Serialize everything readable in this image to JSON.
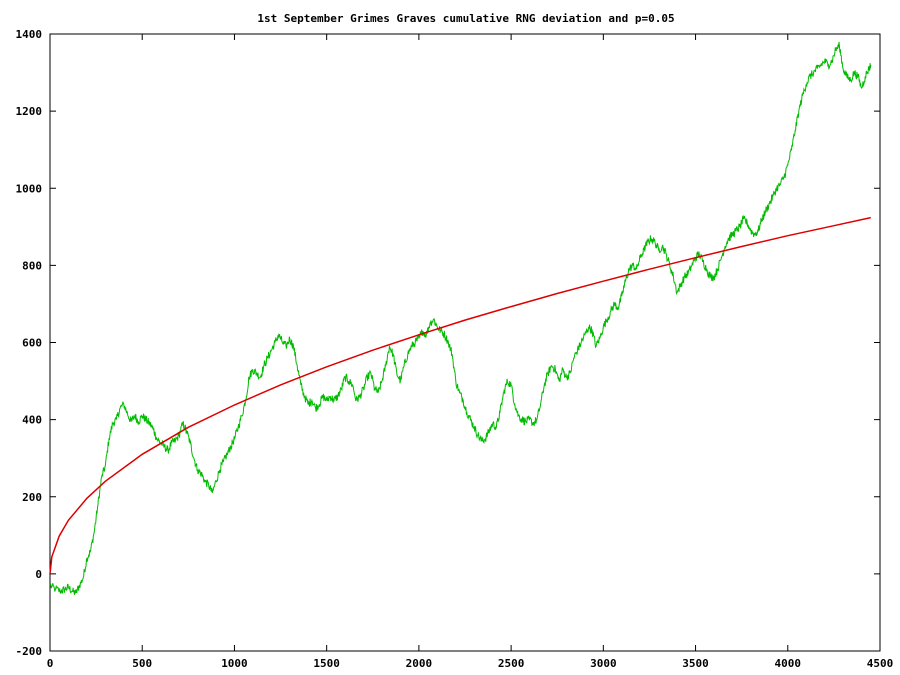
{
  "chart_data": {
    "type": "line",
    "title": "1st September Grimes Graves cumulative RNG deviation and p=0.05",
    "xlabel": "",
    "ylabel": "",
    "xlim": [
      0,
      4500
    ],
    "ylim": [
      -200,
      1400
    ],
    "x_ticks": [
      0,
      500,
      1000,
      1500,
      2000,
      2500,
      3000,
      3500,
      4000,
      4500
    ],
    "y_ticks": [
      -200,
      0,
      200,
      400,
      600,
      800,
      1000,
      1200,
      1400
    ],
    "grid": false,
    "legend": "none",
    "series": [
      {
        "color": "#00bb00",
        "points": [
          [
            0,
            -30
          ],
          [
            30,
            -40
          ],
          [
            60,
            -45
          ],
          [
            80,
            -40
          ],
          [
            100,
            -35
          ],
          [
            120,
            -45
          ],
          [
            140,
            -50
          ],
          [
            160,
            -30
          ],
          [
            180,
            -10
          ],
          [
            200,
            40
          ],
          [
            220,
            60
          ],
          [
            240,
            110
          ],
          [
            260,
            180
          ],
          [
            280,
            250
          ],
          [
            300,
            280
          ],
          [
            320,
            350
          ],
          [
            340,
            390
          ],
          [
            360,
            400
          ],
          [
            380,
            430
          ],
          [
            400,
            440
          ],
          [
            420,
            415
          ],
          [
            440,
            395
          ],
          [
            460,
            410
          ],
          [
            480,
            395
          ],
          [
            500,
            410
          ],
          [
            520,
            400
          ],
          [
            540,
            390
          ],
          [
            560,
            375
          ],
          [
            580,
            350
          ],
          [
            600,
            340
          ],
          [
            620,
            330
          ],
          [
            640,
            320
          ],
          [
            660,
            340
          ],
          [
            680,
            345
          ],
          [
            700,
            360
          ],
          [
            720,
            390
          ],
          [
            740,
            370
          ],
          [
            760,
            340
          ],
          [
            780,
            300
          ],
          [
            800,
            270
          ],
          [
            820,
            260
          ],
          [
            840,
            240
          ],
          [
            860,
            230
          ],
          [
            880,
            210
          ],
          [
            900,
            240
          ],
          [
            920,
            270
          ],
          [
            940,
            290
          ],
          [
            960,
            310
          ],
          [
            980,
            330
          ],
          [
            1000,
            350
          ],
          [
            1020,
            380
          ],
          [
            1040,
            410
          ],
          [
            1060,
            450
          ],
          [
            1080,
            510
          ],
          [
            1100,
            530
          ],
          [
            1120,
            520
          ],
          [
            1140,
            510
          ],
          [
            1160,
            540
          ],
          [
            1180,
            560
          ],
          [
            1200,
            580
          ],
          [
            1220,
            600
          ],
          [
            1240,
            620
          ],
          [
            1260,
            600
          ],
          [
            1280,
            590
          ],
          [
            1300,
            610
          ],
          [
            1320,
            590
          ],
          [
            1340,
            540
          ],
          [
            1360,
            490
          ],
          [
            1380,
            460
          ],
          [
            1400,
            440
          ],
          [
            1420,
            450
          ],
          [
            1440,
            430
          ],
          [
            1460,
            440
          ],
          [
            1480,
            460
          ],
          [
            1500,
            450
          ],
          [
            1520,
            460
          ],
          [
            1540,
            450
          ],
          [
            1560,
            460
          ],
          [
            1580,
            480
          ],
          [
            1600,
            510
          ],
          [
            1620,
            500
          ],
          [
            1640,
            490
          ],
          [
            1660,
            450
          ],
          [
            1680,
            460
          ],
          [
            1700,
            480
          ],
          [
            1720,
            510
          ],
          [
            1740,
            520
          ],
          [
            1760,
            480
          ],
          [
            1780,
            470
          ],
          [
            1800,
            500
          ],
          [
            1820,
            540
          ],
          [
            1840,
            590
          ],
          [
            1860,
            570
          ],
          [
            1880,
            520
          ],
          [
            1900,
            500
          ],
          [
            1920,
            540
          ],
          [
            1940,
            570
          ],
          [
            1960,
            590
          ],
          [
            1980,
            600
          ],
          [
            2000,
            610
          ],
          [
            2020,
            630
          ],
          [
            2040,
            620
          ],
          [
            2060,
            650
          ],
          [
            2080,
            660
          ],
          [
            2100,
            640
          ],
          [
            2120,
            630
          ],
          [
            2140,
            620
          ],
          [
            2160,
            600
          ],
          [
            2180,
            570
          ],
          [
            2200,
            500
          ],
          [
            2220,
            470
          ],
          [
            2240,
            450
          ],
          [
            2260,
            420
          ],
          [
            2280,
            400
          ],
          [
            2300,
            380
          ],
          [
            2320,
            360
          ],
          [
            2340,
            345
          ],
          [
            2360,
            350
          ],
          [
            2380,
            370
          ],
          [
            2400,
            390
          ],
          [
            2420,
            380
          ],
          [
            2440,
            420
          ],
          [
            2460,
            470
          ],
          [
            2480,
            500
          ],
          [
            2500,
            490
          ],
          [
            2520,
            440
          ],
          [
            2540,
            410
          ],
          [
            2560,
            400
          ],
          [
            2580,
            395
          ],
          [
            2600,
            400
          ],
          [
            2620,
            390
          ],
          [
            2640,
            400
          ],
          [
            2660,
            440
          ],
          [
            2680,
            490
          ],
          [
            2700,
            520
          ],
          [
            2720,
            540
          ],
          [
            2740,
            530
          ],
          [
            2760,
            500
          ],
          [
            2780,
            530
          ],
          [
            2800,
            510
          ],
          [
            2820,
            520
          ],
          [
            2840,
            560
          ],
          [
            2860,
            580
          ],
          [
            2880,
            600
          ],
          [
            2900,
            620
          ],
          [
            2920,
            640
          ],
          [
            2940,
            630
          ],
          [
            2960,
            590
          ],
          [
            2980,
            610
          ],
          [
            3000,
            640
          ],
          [
            3020,
            660
          ],
          [
            3040,
            680
          ],
          [
            3060,
            700
          ],
          [
            3080,
            690
          ],
          [
            3100,
            720
          ],
          [
            3120,
            760
          ],
          [
            3140,
            790
          ],
          [
            3160,
            800
          ],
          [
            3180,
            790
          ],
          [
            3200,
            820
          ],
          [
            3220,
            840
          ],
          [
            3240,
            860
          ],
          [
            3260,
            870
          ],
          [
            3280,
            860
          ],
          [
            3300,
            840
          ],
          [
            3320,
            850
          ],
          [
            3340,
            830
          ],
          [
            3360,
            800
          ],
          [
            3380,
            770
          ],
          [
            3400,
            730
          ],
          [
            3420,
            750
          ],
          [
            3440,
            770
          ],
          [
            3460,
            780
          ],
          [
            3480,
            800
          ],
          [
            3500,
            820
          ],
          [
            3520,
            830
          ],
          [
            3540,
            810
          ],
          [
            3560,
            790
          ],
          [
            3580,
            770
          ],
          [
            3600,
            770
          ],
          [
            3620,
            790
          ],
          [
            3640,
            820
          ],
          [
            3660,
            850
          ],
          [
            3680,
            870
          ],
          [
            3700,
            880
          ],
          [
            3720,
            890
          ],
          [
            3740,
            900
          ],
          [
            3760,
            920
          ],
          [
            3780,
            910
          ],
          [
            3800,
            890
          ],
          [
            3820,
            880
          ],
          [
            3840,
            890
          ],
          [
            3860,
            920
          ],
          [
            3880,
            940
          ],
          [
            3900,
            960
          ],
          [
            3920,
            980
          ],
          [
            3940,
            1000
          ],
          [
            3960,
            1010
          ],
          [
            3980,
            1030
          ],
          [
            4000,
            1060
          ],
          [
            4020,
            1100
          ],
          [
            4040,
            1150
          ],
          [
            4060,
            1200
          ],
          [
            4080,
            1240
          ],
          [
            4100,
            1270
          ],
          [
            4120,
            1290
          ],
          [
            4140,
            1300
          ],
          [
            4160,
            1310
          ],
          [
            4180,
            1320
          ],
          [
            4200,
            1330
          ],
          [
            4220,
            1320
          ],
          [
            4240,
            1330
          ],
          [
            4260,
            1360
          ],
          [
            4280,
            1370
          ],
          [
            4300,
            1310
          ],
          [
            4320,
            1290
          ],
          [
            4340,
            1280
          ],
          [
            4360,
            1300
          ],
          [
            4380,
            1290
          ],
          [
            4400,
            1260
          ],
          [
            4420,
            1290
          ],
          [
            4440,
            1310
          ],
          [
            4450,
            1320
          ]
        ]
      },
      {
        "color": "#dd0000",
        "formula_note": "p=0.05",
        "x": [
          0,
          10,
          50,
          100,
          200,
          300,
          500,
          750,
          1000,
          1250,
          1500,
          1750,
          2000,
          2250,
          2500,
          2750,
          3000,
          3250,
          3500,
          3750,
          4000,
          4250,
          4450
        ],
        "values": [
          0,
          44,
          98,
          139,
          196,
          240,
          310,
          380,
          438,
          490,
          537,
          580,
          620,
          658,
          693,
          727,
          759,
          790,
          820,
          849,
          877,
          903,
          924
        ]
      }
    ]
  }
}
